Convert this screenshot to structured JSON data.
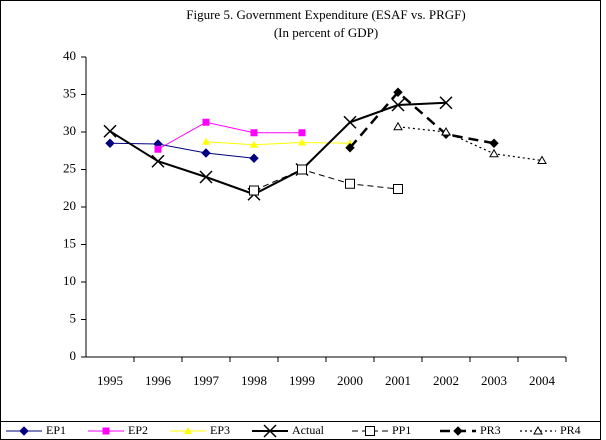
{
  "chart_data": {
    "type": "line",
    "title": "Figure 5. Government Expenditure (ESAF vs. PRGF)",
    "subtitle": "(In percent of GDP)",
    "categories": [
      "1995",
      "1996",
      "1997",
      "1998",
      "1999",
      "2000",
      "2001",
      "2002",
      "2003",
      "2004"
    ],
    "ylim": [
      0,
      40
    ],
    "yticks": [
      0,
      5,
      10,
      15,
      20,
      25,
      30,
      35,
      40
    ],
    "grid": false,
    "legend": "bottom",
    "series": [
      {
        "name": "EP1",
        "color": "#000080",
        "marker": "diamond",
        "dash": "solid",
        "values": [
          28.5,
          28.4,
          27.2,
          26.5,
          null,
          null,
          null,
          null,
          null,
          null
        ]
      },
      {
        "name": "EP2",
        "color": "#ff00ff",
        "marker": "square",
        "dash": "solid",
        "values": [
          null,
          27.7,
          31.3,
          29.9,
          29.9,
          null,
          null,
          null,
          null,
          null
        ]
      },
      {
        "name": "EP3",
        "color": "#ffff00",
        "marker": "triangle",
        "dash": "solid",
        "values": [
          null,
          null,
          28.7,
          28.3,
          28.6,
          28.5,
          null,
          null,
          null,
          null
        ]
      },
      {
        "name": "Actual",
        "color": "#000000",
        "marker": "cross",
        "dash": "bold",
        "values": [
          30.1,
          26.1,
          24.0,
          21.7,
          25.0,
          31.3,
          33.6,
          33.9,
          null,
          null
        ]
      },
      {
        "name": "PP1",
        "color": "#000000",
        "marker": "open-square",
        "dash": "dashed",
        "values": [
          null,
          null,
          null,
          22.2,
          25.0,
          23.1,
          22.4,
          null,
          null,
          null
        ]
      },
      {
        "name": "PR3",
        "color": "#000000",
        "marker": "diamond",
        "dash": "bold-dashed",
        "values": [
          null,
          null,
          null,
          null,
          null,
          27.9,
          35.3,
          29.7,
          28.5,
          null
        ]
      },
      {
        "name": "PR4",
        "color": "#000000",
        "marker": "open-triangle",
        "dash": "dotted",
        "values": [
          null,
          null,
          null,
          null,
          null,
          null,
          30.7,
          30.0,
          27.1,
          26.2
        ]
      }
    ]
  }
}
